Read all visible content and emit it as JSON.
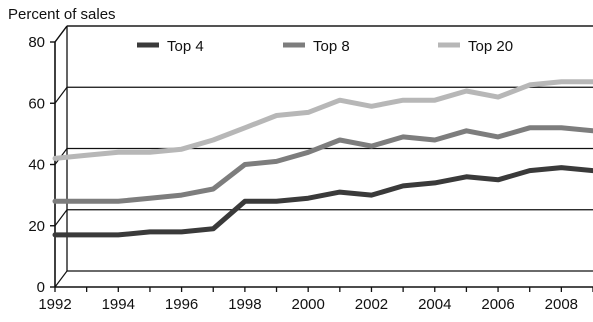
{
  "chart_data": {
    "type": "line",
    "ylabel": "Percent of sales",
    "xlabel": "",
    "title": "",
    "xlim": [
      1992,
      2009
    ],
    "ylim": [
      0,
      80
    ],
    "xticks": [
      1992,
      1994,
      1996,
      1998,
      2000,
      2002,
      2004,
      2006,
      2008
    ],
    "yticks": [
      0,
      20,
      40,
      60,
      80
    ],
    "grid": "horizontal",
    "legend_position": "top",
    "series": [
      {
        "name": "Top 4",
        "color": "#3a3a3a",
        "x": [
          1992,
          1993,
          1994,
          1995,
          1996,
          1997,
          1998,
          1999,
          2000,
          2001,
          2002,
          2003,
          2004,
          2005,
          2006,
          2007,
          2008,
          2009
        ],
        "values": [
          17,
          17,
          17,
          18,
          18,
          19,
          28,
          28,
          29,
          31,
          30,
          33,
          34,
          36,
          35,
          38,
          39,
          38
        ]
      },
      {
        "name": "Top 8",
        "color": "#7d7d7d",
        "x": [
          1992,
          1993,
          1994,
          1995,
          1996,
          1997,
          1998,
          1999,
          2000,
          2001,
          2002,
          2003,
          2004,
          2005,
          2006,
          2007,
          2008,
          2009
        ],
        "values": [
          28,
          28,
          28,
          29,
          30,
          32,
          40,
          41,
          44,
          48,
          46,
          49,
          48,
          51,
          49,
          52,
          52,
          51
        ]
      },
      {
        "name": "Top 20",
        "color": "#b7b7b7",
        "x": [
          1992,
          1993,
          1994,
          1995,
          1996,
          1997,
          1998,
          1999,
          2000,
          2001,
          2002,
          2003,
          2004,
          2005,
          2006,
          2007,
          2008,
          2009
        ],
        "values": [
          42,
          43,
          44,
          44,
          45,
          48,
          52,
          56,
          57,
          61,
          59,
          61,
          61,
          64,
          62,
          66,
          67,
          67
        ]
      }
    ]
  }
}
